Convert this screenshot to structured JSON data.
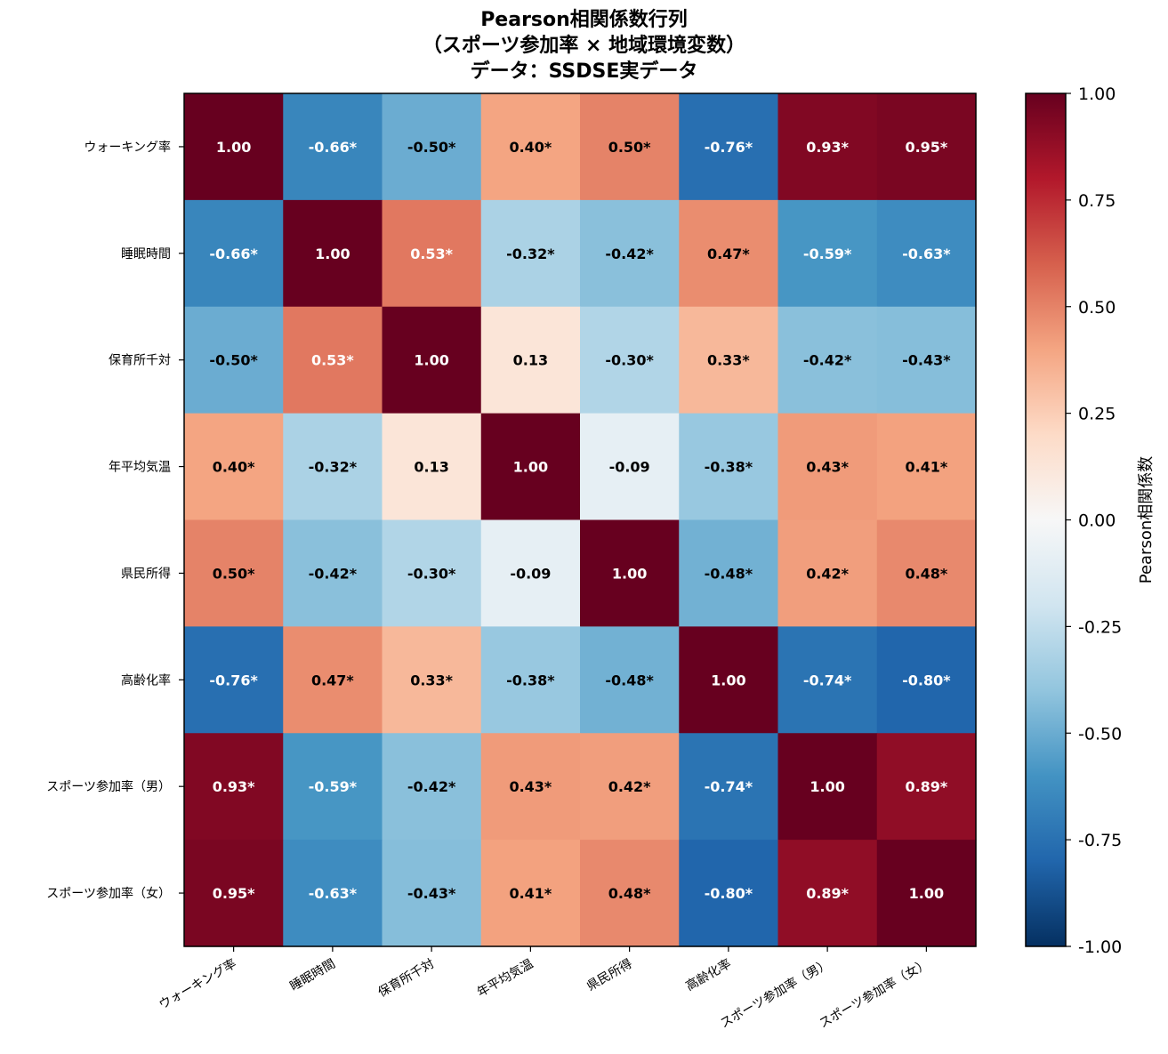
{
  "chart_data": {
    "type": "heatmap",
    "title_lines": [
      "Pearson相関係数行列",
      "（スポーツ参加率 × 地域環境変数）",
      "データ：SSDSE実データ"
    ],
    "row_labels": [
      "ウォーキング率",
      "睡眠時間",
      "保育所千対",
      "年平均気温",
      "県民所得",
      "高齢化率",
      "スポーツ参加率（男）",
      "スポーツ参加率（女）"
    ],
    "col_labels": [
      "ウォーキング率",
      "睡眠時間",
      "保育所千対",
      "年平均気温",
      "県民所得",
      "高齢化率",
      "スポーツ参加率（男）",
      "スポーツ参加率（女）"
    ],
    "values": [
      [
        1.0,
        -0.66,
        -0.5,
        0.4,
        0.5,
        -0.76,
        0.93,
        0.95
      ],
      [
        -0.66,
        1.0,
        0.53,
        -0.32,
        -0.42,
        0.47,
        -0.59,
        -0.63
      ],
      [
        -0.5,
        0.53,
        1.0,
        0.13,
        -0.3,
        0.33,
        -0.42,
        -0.43
      ],
      [
        0.4,
        -0.32,
        0.13,
        1.0,
        -0.09,
        -0.38,
        0.43,
        0.41
      ],
      [
        0.5,
        -0.42,
        -0.3,
        -0.09,
        1.0,
        -0.48,
        0.42,
        0.48
      ],
      [
        -0.76,
        0.47,
        0.33,
        -0.38,
        -0.48,
        1.0,
        -0.74,
        -0.8
      ],
      [
        0.93,
        -0.59,
        -0.42,
        0.43,
        0.42,
        -0.74,
        1.0,
        0.89
      ],
      [
        0.95,
        -0.63,
        -0.43,
        0.41,
        0.48,
        -0.8,
        0.89,
        1.0
      ]
    ],
    "cell_labels": [
      [
        "1.00",
        "-0.66*",
        "-0.50*",
        "0.40*",
        "0.50*",
        "-0.76*",
        "0.93*",
        "0.95*"
      ],
      [
        "-0.66*",
        "1.00",
        "0.53*",
        "-0.32*",
        "-0.42*",
        "0.47*",
        "-0.59*",
        "-0.63*"
      ],
      [
        "-0.50*",
        "0.53*",
        "1.00",
        "0.13",
        "-0.30*",
        "0.33*",
        "-0.42*",
        "-0.43*"
      ],
      [
        "0.40*",
        "-0.32*",
        "0.13",
        "1.00",
        "-0.09",
        "-0.38*",
        "0.43*",
        "0.41*"
      ],
      [
        "0.50*",
        "-0.42*",
        "-0.30*",
        "-0.09",
        "1.00",
        "-0.48*",
        "0.42*",
        "0.48*"
      ],
      [
        "-0.76*",
        "0.47*",
        "0.33*",
        "-0.38*",
        "-0.48*",
        "1.00",
        "-0.74*",
        "-0.80*"
      ],
      [
        "0.93*",
        "-0.59*",
        "-0.42*",
        "0.43*",
        "0.42*",
        "-0.74*",
        "1.00",
        "0.89*"
      ],
      [
        "0.95*",
        "-0.63*",
        "-0.43*",
        "0.41*",
        "0.48*",
        "-0.80*",
        "0.89*",
        "1.00"
      ]
    ],
    "colormap": "RdBu_r",
    "colorbar": {
      "label": "Pearson相関係数",
      "range": [
        -1.0,
        1.0
      ],
      "ticks": [
        "1.00",
        "0.75",
        "0.50",
        "0.25",
        "0.00",
        "-0.25",
        "-0.50",
        "-0.75",
        "-1.00"
      ]
    },
    "grid": false
  }
}
